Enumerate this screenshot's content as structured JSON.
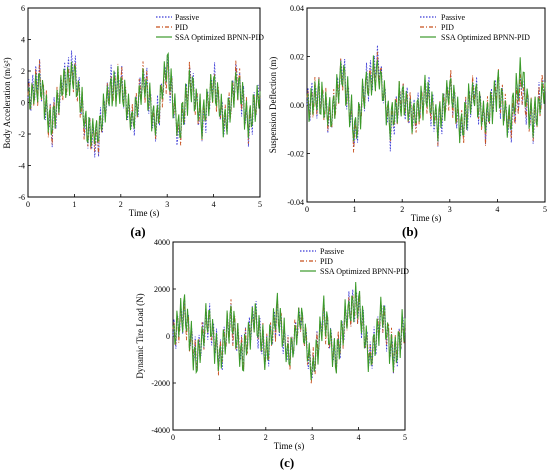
{
  "colors": {
    "passive": "#3b3bd6",
    "pid": "#c8501e",
    "ssa": "#3b9a2a",
    "axis": "#000000"
  },
  "panels": [
    {
      "id": "a",
      "caption": "(a)",
      "legend_entries": [
        "Passive",
        "PID",
        "SSA Optimized BPNN-PID"
      ],
      "chart_data": {
        "type": "line",
        "xlabel": "Time (s)",
        "ylabel": "Body Acceleration (m/s²)",
        "xlim": [
          0,
          5
        ],
        "ylim": [
          -6,
          6
        ],
        "x_ticks": [
          "0",
          "1",
          "2",
          "3",
          "4",
          "5"
        ],
        "y_ticks": [
          "-6",
          "-4",
          "-2",
          "0",
          "2",
          "4",
          "6"
        ],
        "legend": "top-right",
        "grid": false,
        "series": [
          {
            "name": "Passive",
            "style": "dotted",
            "x": [
              0,
              0.25,
              0.5,
              0.75,
              1,
              1.25,
              1.5,
              1.75,
              2,
              2.25,
              2.5,
              2.75,
              3,
              3.25,
              3.5,
              3.75,
              4,
              4.25,
              4.5,
              4.75,
              5
            ],
            "y": [
              0.5,
              2.8,
              -3.2,
              2.4,
              4.2,
              -3.5,
              -4.6,
              1.8,
              2.2,
              -2.6,
              3.1,
              -3.0,
              4.4,
              -4.1,
              3.0,
              -2.8,
              2.6,
              -3.1,
              3.3,
              -2.9,
              1.2
            ]
          },
          {
            "name": "PID",
            "style": "dash-dot",
            "x": [
              0,
              0.25,
              0.5,
              0.75,
              1,
              1.25,
              1.5,
              1.75,
              2,
              2.25,
              2.5,
              2.75,
              3,
              3.25,
              3.5,
              3.75,
              4,
              4.25,
              4.5,
              4.75,
              5
            ],
            "y": [
              0.4,
              2.5,
              -2.9,
              2.2,
              3.6,
              -3.1,
              -4.1,
              1.6,
              2.0,
              -2.3,
              2.8,
              -2.7,
              4.0,
              -3.7,
              2.7,
              -2.5,
              2.3,
              -2.8,
              3.0,
              -2.6,
              1.0
            ]
          },
          {
            "name": "SSA Optimized BPNN-PID",
            "style": "solid",
            "x": [
              0,
              0.25,
              0.5,
              0.75,
              1,
              1.25,
              1.5,
              1.75,
              2,
              2.25,
              2.5,
              2.75,
              3,
              3.25,
              3.5,
              3.75,
              4,
              4.25,
              4.5,
              4.75,
              5
            ],
            "y": [
              0.3,
              2.2,
              -2.6,
              2.0,
              3.2,
              -2.8,
              -3.7,
              1.4,
              1.8,
              -2.1,
              2.5,
              -2.4,
              4.6,
              -3.4,
              2.4,
              -2.2,
              2.0,
              -2.5,
              2.7,
              -2.3,
              0.9
            ]
          }
        ]
      }
    },
    {
      "id": "b",
      "caption": "(b)",
      "legend_entries": [
        "Passive",
        "PID",
        "SSA Optimized BPNN-PID"
      ],
      "chart_data": {
        "type": "line",
        "xlabel": "Time (s)",
        "ylabel": "Suspension Deflection (m)",
        "xlim": [
          0,
          5
        ],
        "ylim": [
          -0.04,
          0.04
        ],
        "x_ticks": [
          "0",
          "1",
          "2",
          "3",
          "4",
          "5"
        ],
        "y_ticks": [
          "-0.04",
          "-0.02",
          "0.00",
          "0.02",
          "0.04"
        ],
        "legend": "top-right",
        "grid": false,
        "series": [
          {
            "name": "Passive",
            "style": "dotted",
            "x": [
              0,
              0.25,
              0.5,
              0.75,
              1,
              1.25,
              1.5,
              1.75,
              2,
              2.25,
              2.5,
              2.75,
              3,
              3.25,
              3.5,
              3.75,
              4,
              4.25,
              4.5,
              4.75,
              5
            ],
            "y": [
              0.0,
              0.008,
              -0.012,
              0.029,
              -0.026,
              0.018,
              0.031,
              -0.018,
              0.008,
              -0.012,
              0.011,
              -0.016,
              0.014,
              -0.02,
              0.012,
              -0.014,
              0.015,
              -0.017,
              0.013,
              -0.015,
              0.018
            ]
          },
          {
            "name": "PID",
            "style": "dash-dot",
            "x": [
              0,
              0.25,
              0.5,
              0.75,
              1,
              1.25,
              1.5,
              1.75,
              2,
              2.25,
              2.5,
              2.75,
              3,
              3.25,
              3.5,
              3.75,
              4,
              4.25,
              4.5,
              4.75,
              5
            ],
            "y": [
              0.0,
              0.007,
              -0.011,
              0.027,
              -0.024,
              0.016,
              0.028,
              -0.016,
              0.007,
              -0.011,
              0.01,
              -0.015,
              0.013,
              -0.018,
              0.011,
              -0.013,
              0.014,
              -0.016,
              0.012,
              -0.014,
              0.016
            ]
          },
          {
            "name": "SSA Optimized BPNN-PID",
            "style": "solid",
            "x": [
              0,
              0.25,
              0.5,
              0.75,
              1,
              1.25,
              1.5,
              1.75,
              2,
              2.25,
              2.5,
              2.75,
              3,
              3.25,
              3.5,
              3.75,
              4,
              4.25,
              4.5,
              4.75,
              5
            ],
            "y": [
              0.0,
              0.006,
              -0.009,
              0.024,
              -0.02,
              0.014,
              0.025,
              -0.013,
              0.006,
              -0.009,
              0.009,
              -0.013,
              0.012,
              -0.016,
              0.01,
              -0.012,
              0.013,
              -0.014,
              0.023,
              -0.013,
              0.014
            ]
          }
        ]
      }
    },
    {
      "id": "c",
      "caption": "(c)",
      "legend_entries": [
        "Passive",
        "PID",
        "SSA Optimized BPNN-PID"
      ],
      "chart_data": {
        "type": "line",
        "xlabel": "Time (s)",
        "ylabel": "Dynamic Tire Load (N)",
        "xlim": [
          0,
          5
        ],
        "ylim": [
          -5000,
          5000
        ],
        "x_ticks": [
          "0",
          "1",
          "2",
          "3",
          "4",
          "5"
        ],
        "y_ticks": [
          "-4000",
          "-2000",
          "0",
          "2000",
          "4000"
        ],
        "legend": "top-right",
        "grid": false,
        "series": [
          {
            "name": "Passive",
            "style": "dotted",
            "x": [
              0,
              0.25,
              0.5,
              0.75,
              1,
              1.25,
              1.5,
              1.75,
              2,
              2.25,
              2.5,
              2.75,
              3,
              3.25,
              3.5,
              3.75,
              4,
              4.25,
              4.5,
              4.75,
              5
            ],
            "y": [
              0,
              2200,
              -2400,
              1800,
              -2200,
              1600,
              -2000,
              2100,
              -1900,
              2300,
              -2100,
              1900,
              -3500,
              2000,
              -2300,
              2200,
              3100,
              -2500,
              2400,
              -2000,
              1200
            ]
          },
          {
            "name": "PID",
            "style": "dash-dot",
            "x": [
              0,
              0.25,
              0.5,
              0.75,
              1,
              1.25,
              1.5,
              1.75,
              2,
              2.25,
              2.5,
              2.75,
              3,
              3.25,
              3.5,
              3.75,
              4,
              4.25,
              4.5,
              4.75,
              5
            ],
            "y": [
              0,
              2100,
              -2300,
              1700,
              -2100,
              1500,
              -1900,
              2000,
              -1800,
              2200,
              -2000,
              1800,
              -3400,
              1900,
              -2200,
              2100,
              3000,
              -2400,
              2300,
              -1900,
              1100
            ]
          },
          {
            "name": "SSA Optimized BPNN-PID",
            "style": "solid",
            "x": [
              0,
              0.25,
              0.5,
              0.75,
              1,
              1.25,
              1.5,
              1.75,
              2,
              2.25,
              2.5,
              2.75,
              3,
              3.25,
              3.5,
              3.75,
              4,
              4.25,
              4.5,
              4.75,
              5
            ],
            "y": [
              0,
              2500,
              -2600,
              1900,
              -2300,
              1700,
              -2100,
              2200,
              -2000,
              2400,
              -2200,
              2000,
              -3700,
              2100,
              -2400,
              2300,
              3300,
              -2600,
              2500,
              -2100,
              1300
            ]
          }
        ]
      }
    }
  ]
}
